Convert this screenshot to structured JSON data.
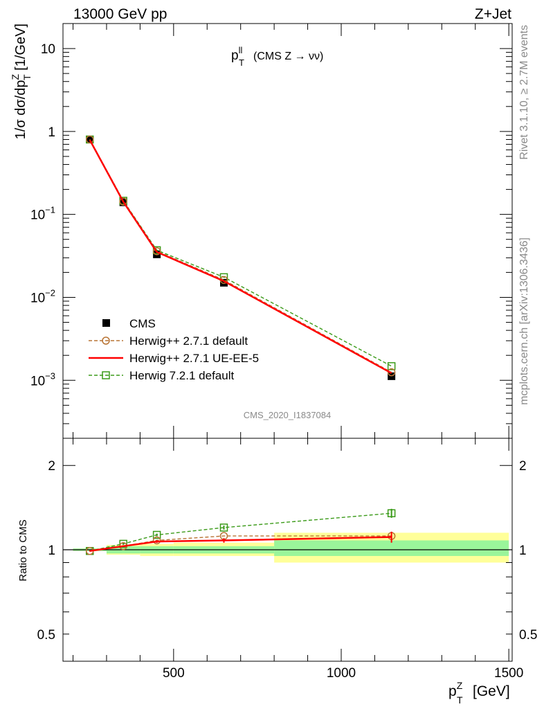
{
  "header": {
    "left": "13000 GeV pp",
    "right": "Z+Jet"
  },
  "side": {
    "rivet": "Rivet 3.1.10, ≥ 2.7M events",
    "mcplots": "mcplots.cern.ch [arXiv:1306.3436]"
  },
  "watermark": "CMS_2020_I1837084",
  "chart_data": [
    {
      "type": "line",
      "title": "p_T^ll (CMS Z → νν)",
      "title_parts": {
        "main": "p",
        "sub": "T",
        "sup": "ll",
        "rest": "(CMS Z → νν)"
      },
      "ylabel": "1/σ dσ/dp_T^Z [1/GeV]",
      "yscale": "log",
      "ylim": [
        0.0002,
        20
      ],
      "xlim": [
        170,
        1510
      ],
      "yticks": [
        {
          "value": 10,
          "label": "10"
        },
        {
          "value": 1,
          "label": "1"
        },
        {
          "value": 0.1,
          "label": "10",
          "exp": "−1"
        },
        {
          "value": 0.01,
          "label": "10",
          "exp": "−2"
        },
        {
          "value": 0.001,
          "label": "10",
          "exp": "−3"
        }
      ],
      "legend_position": "left",
      "series": [
        {
          "name": "CMS",
          "style": "data",
          "color": "#000000",
          "x": [
            250,
            350,
            450,
            650,
            1150
          ],
          "y": [
            0.8,
            0.14,
            0.033,
            0.015,
            0.00112
          ]
        },
        {
          "name": "Herwig++ 2.7.1 default",
          "style": "dashed-circle",
          "color": "#b87333",
          "x": [
            250,
            350,
            450,
            650,
            1150
          ],
          "y": [
            0.8,
            0.143,
            0.036,
            0.0162,
            0.00125
          ]
        },
        {
          "name": "Herwig++ 2.7.1 UE-EE-5",
          "style": "solid",
          "color": "#ff0000",
          "x": [
            250,
            350,
            450,
            650,
            1150
          ],
          "y": [
            0.79,
            0.142,
            0.0352,
            0.0157,
            0.00122
          ]
        },
        {
          "name": "Herwig 7.2.1 default",
          "style": "dashed-square",
          "color": "#3a9a18",
          "x": [
            250,
            350,
            450,
            650,
            1150
          ],
          "y": [
            0.8,
            0.146,
            0.037,
            0.0175,
            0.00148
          ]
        }
      ]
    },
    {
      "type": "line",
      "xlabel": "p_T^Z [GeV]",
      "xlabel_parts": {
        "main": "p",
        "sub": "T",
        "sup": "Z",
        "rest": "[GeV]"
      },
      "ylabel": "Ratio to CMS",
      "yscale": "log",
      "ylim": [
        0.4,
        2.5
      ],
      "xlim": [
        170,
        1510
      ],
      "xticks": [
        {
          "value": 500,
          "label": "500"
        },
        {
          "value": 1000,
          "label": "1000"
        },
        {
          "value": 1500,
          "label": "1500"
        }
      ],
      "yticks": [
        {
          "value": 2,
          "label": "2"
        },
        {
          "value": 1,
          "label": "1"
        },
        {
          "value": 0.5,
          "label": "0.5"
        }
      ],
      "uncertainty_bands": [
        {
          "x": [
            200,
            300
          ],
          "inner": [
            0.99,
            1.01
          ],
          "outer": [
            0.99,
            1.01
          ]
        },
        {
          "x": [
            300,
            400
          ],
          "inner": [
            0.97,
            1.03
          ],
          "outer": [
            0.96,
            1.04
          ]
        },
        {
          "x": [
            400,
            500
          ],
          "inner": [
            0.97,
            1.03
          ],
          "outer": [
            0.95,
            1.05
          ]
        },
        {
          "x": [
            500,
            800
          ],
          "inner": [
            0.97,
            1.03
          ],
          "outer": [
            0.95,
            1.06
          ]
        },
        {
          "x": [
            800,
            1500
          ],
          "inner": [
            0.95,
            1.08
          ],
          "outer": [
            0.9,
            1.15
          ]
        }
      ],
      "band_colors": {
        "inner": "#9af59a",
        "outer": "#ffff99"
      },
      "series": [
        {
          "name": "Herwig++ 2.7.1 default",
          "style": "dashed-circle",
          "color": "#b87333",
          "x": [
            250,
            350,
            450,
            650,
            1150
          ],
          "y": [
            0.99,
            1.03,
            1.08,
            1.12,
            1.12
          ]
        },
        {
          "name": "Herwig++ 2.7.1 UE-EE-5",
          "style": "solid",
          "color": "#ff0000",
          "x": [
            250,
            350,
            450,
            650,
            1150
          ],
          "y": [
            0.99,
            1.03,
            1.07,
            1.08,
            1.11
          ],
          "yerr": [
            0.004,
            0.008,
            0.012,
            0.02,
            0.05
          ]
        },
        {
          "name": "Herwig 7.2.1 default",
          "style": "dashed-square",
          "color": "#3a9a18",
          "x": [
            250,
            350,
            450,
            650,
            1150
          ],
          "y": [
            0.99,
            1.05,
            1.13,
            1.2,
            1.35
          ],
          "yerr": [
            0.004,
            0.008,
            0.012,
            0.02,
            0.05
          ]
        }
      ]
    }
  ]
}
